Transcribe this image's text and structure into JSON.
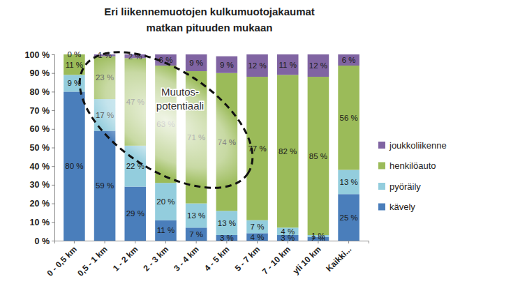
{
  "chart_data": {
    "type": "bar",
    "title": [
      "Eri liikennemuotojen kulkumuotojakaumat",
      "matkan pituuden mukaan"
    ],
    "categories": [
      "0 - 0,5 km",
      "0,5 - 1 km",
      "1 - 2 km",
      "2 - 3 km",
      "3 - 4 km",
      "4 - 5 km",
      "5 - 7 km",
      "7 - 10 km",
      "yli 10 km",
      "Kaikki..."
    ],
    "series": [
      {
        "name": "kävely",
        "color": "#4a7ebb",
        "values": [
          80,
          59,
          29,
          11,
          7,
          3,
          4,
          3,
          2,
          25
        ],
        "value_labels": [
          "80 %",
          "59 %",
          "29 %",
          "11 %",
          "7 %",
          "3 %",
          "4 %",
          "3 %",
          "2 %",
          "25 %"
        ]
      },
      {
        "name": "pyöräily",
        "color": "#93cddd",
        "values": [
          9,
          17,
          22,
          20,
          13,
          13,
          7,
          4,
          1,
          13
        ],
        "value_labels": [
          "9 %",
          "17 %",
          "22 %",
          "20 %",
          "13 %",
          "13 %",
          "7 %",
          "4 %",
          "1 %",
          "13 %"
        ]
      },
      {
        "name": "henkilöauto",
        "color": "#9bbb59",
        "values": [
          11,
          23,
          47,
          63,
          71,
          74,
          77,
          82,
          85,
          56
        ],
        "value_labels": [
          "11 %",
          "23 %",
          "47 %",
          "63 %",
          "71 %",
          "74 %",
          "77 %",
          "82 %",
          "85 %",
          "56 %"
        ]
      },
      {
        "name": "joukkoliikenne",
        "color": "#8064a2",
        "values": [
          0,
          1,
          2,
          6,
          9,
          9,
          12,
          11,
          12,
          6
        ],
        "value_labels": [
          "0 %",
          "1 %",
          "2 %",
          "6 %",
          "9 %",
          "9 %",
          "12 %",
          "11 %",
          "12 %",
          "6 %"
        ]
      }
    ],
    "ylim": [
      0,
      100
    ],
    "yticks": [
      {
        "value": 0,
        "label": "0 %"
      },
      {
        "value": 10,
        "label": "10 %"
      },
      {
        "value": 20,
        "label": "20 %"
      },
      {
        "value": 30,
        "label": "30 %"
      },
      {
        "value": 40,
        "label": "40 %"
      },
      {
        "value": 50,
        "label": "50 %"
      },
      {
        "value": 60,
        "label": "60 %"
      },
      {
        "value": 70,
        "label": "70 %"
      },
      {
        "value": 80,
        "label": "80 %"
      },
      {
        "value": 90,
        "label": "90 %"
      },
      {
        "value": 100,
        "label": "100 %"
      }
    ],
    "stacked": true,
    "data_labels": true,
    "grid": false,
    "legend": "right",
    "annotations": [
      {
        "lines": [
          "Muutos-",
          "potentiaali"
        ]
      }
    ]
  }
}
